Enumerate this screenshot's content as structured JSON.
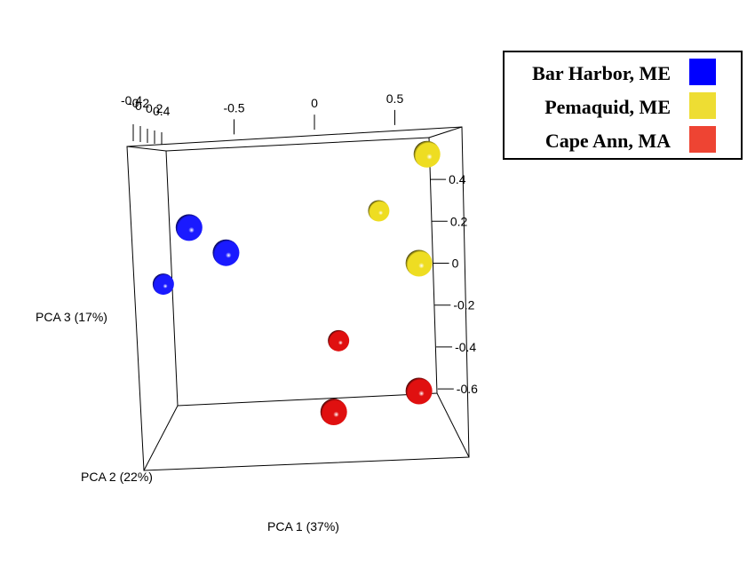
{
  "chart_data": {
    "type": "scatter",
    "dimensions": "3d",
    "axes": {
      "x": {
        "label": "PCA 1 (37%)",
        "ticks": [
          "-0.5",
          "0",
          "0.5"
        ],
        "range": [
          -1.0,
          0.9
        ]
      },
      "y": {
        "label": "PCA 2 (22%)",
        "ticks": [
          "-0.4",
          "-0.2",
          "0",
          "0.2",
          "0.4"
        ]
      },
      "z": {
        "label": "PCA 3 (17%)",
        "ticks": [
          "0.4",
          "0.2",
          "0",
          "-0.2",
          "-0.4",
          "-0.6"
        ],
        "range": [
          -0.75,
          0.55
        ]
      }
    },
    "legend": {
      "position": "top-right",
      "entries": [
        {
          "label": "Bar Harbor, ME",
          "color": "#0000ff"
        },
        {
          "label": "Pemaquid, ME",
          "color": "#eedd33"
        },
        {
          "label": "Cape Ann, MA",
          "color": "#ee4433"
        }
      ]
    },
    "series": [
      {
        "name": "Bar Harbor, ME",
        "color": "#1a1aff",
        "points": [
          {
            "x": -0.78,
            "z": 0.17,
            "near": true
          },
          {
            "x": -0.55,
            "z": 0.05,
            "near": true
          },
          {
            "x": -0.94,
            "z": -0.1,
            "near": false
          }
        ]
      },
      {
        "name": "Pemaquid, ME",
        "color": "#eedd22",
        "points": [
          {
            "x": 0.7,
            "z": 0.52,
            "near": true
          },
          {
            "x": 0.4,
            "z": 0.25,
            "near": false
          },
          {
            "x": 0.65,
            "z": 0.0,
            "near": true
          }
        ]
      },
      {
        "name": "Cape Ann, MA",
        "color": "#e01010",
        "points": [
          {
            "x": 0.15,
            "z": -0.37,
            "near": false
          },
          {
            "x": 0.65,
            "z": -0.61,
            "near": true
          },
          {
            "x": 0.12,
            "z": -0.71,
            "near": true
          }
        ]
      }
    ]
  }
}
